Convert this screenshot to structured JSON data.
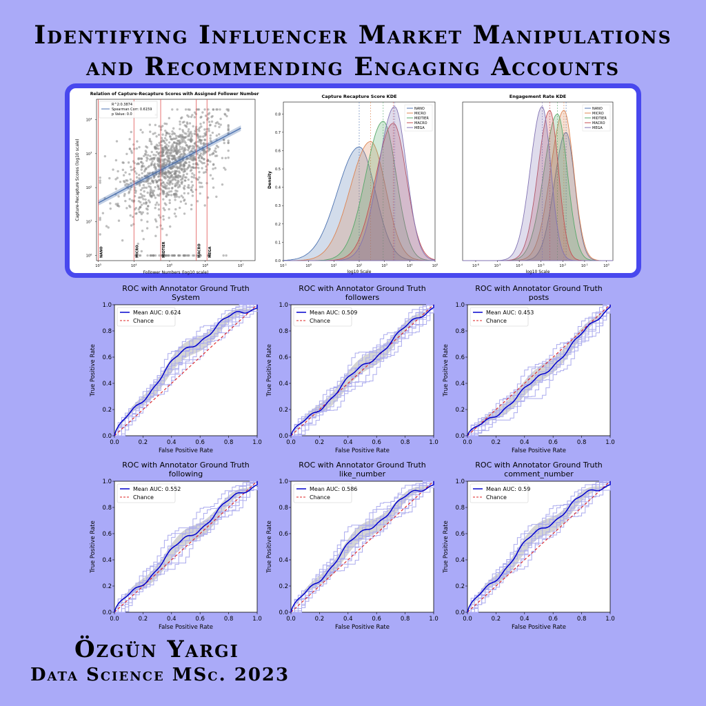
{
  "title_line1": "Identifying Influencer Market Manipulations",
  "title_line2": "and Recommending Engaging Accounts",
  "author": "Özgün Yargi",
  "degree": "Data Science MSc. 2023",
  "colors": {
    "background": "#aaaaf8",
    "frame": "#4848ee",
    "roc_mean": "#0000cc",
    "roc_fold": "#aaaaee",
    "chance": "#dd2222",
    "band": "#aaaaaa",
    "regline": "#4c72b0"
  },
  "tiers": [
    "NANO",
    "MICRO",
    "MIDTIER",
    "MACRO",
    "MEGA"
  ],
  "tier_colors": [
    "#4c72b0",
    "#dd8452",
    "#55a868",
    "#c44e52",
    "#8172b3"
  ],
  "chart_data": [
    {
      "type": "scatter",
      "title": "Relation of Capture-Recapture Scores with Assigned Follower Numbers",
      "xlabel": "Follower Numbers (log10 scale)",
      "ylabel": "Capture-Recapture Scores (log10 scale)",
      "x_ticks": [
        "10^3",
        "10^4",
        "10^5",
        "10^6",
        "10^7"
      ],
      "y_ticks": [
        "10^0",
        "10^1",
        "10^2",
        "10^3",
        "10^4"
      ],
      "xlim_log10": [
        2.95,
        7.4
      ],
      "ylim_log10": [
        -0.15,
        4.6
      ],
      "legend": [
        "R^2:0.3874",
        "Spearman Corr: 0.6159",
        "p Value: 0.0"
      ],
      "regression": {
        "x_log10": [
          3.0,
          7.0
        ],
        "y_log10": [
          1.55,
          3.75
        ]
      },
      "tier_lines_log10": [
        3.0,
        4.0,
        4.75,
        5.75,
        6.05
      ],
      "tier_line_labels": [
        "NANO",
        "MICRO",
        "MIDTIER",
        "MACRO",
        "MEGA"
      ],
      "n_points": 1200
    },
    {
      "type": "area",
      "title": "Capture Recapture Score KDE",
      "xlabel": "log10 Scale",
      "ylabel": "Density",
      "x_ticks": [
        "10^-1",
        "10^0",
        "10^1",
        "10^2",
        "10^3",
        "10^4",
        "10^5"
      ],
      "y_ticks": [
        "0.0",
        "0.1",
        "0.2",
        "0.3",
        "0.4",
        "0.5",
        "0.6",
        "0.7",
        "0.8"
      ],
      "xlim_log10": [
        -1,
        5
      ],
      "ylim": [
        0,
        0.88
      ],
      "series": [
        {
          "name": "NANO",
          "center": 2.0,
          "sigma": 0.64,
          "peak": 0.62
        },
        {
          "name": "MICRO",
          "center": 2.45,
          "sigma": 0.6,
          "peak": 0.65
        },
        {
          "name": "MIDTIER",
          "center": 2.95,
          "sigma": 0.52,
          "peak": 0.76
        },
        {
          "name": "MACRO",
          "center": 3.35,
          "sigma": 0.52,
          "peak": 0.75
        },
        {
          "name": "MEGA",
          "center": 3.4,
          "sigma": 0.47,
          "peak": 0.84
        }
      ]
    },
    {
      "type": "area",
      "title": "Engagement Rate KDE",
      "xlabel": "log10 Scale",
      "x_ticks": [
        "10^-6",
        "10^-5",
        "10^-4",
        "10^-3",
        "10^-2",
        "10^-1",
        "10^0"
      ],
      "xlim_log10": [
        -6.6,
        0.3
      ],
      "series": [
        {
          "name": "NANO",
          "center": -1.85,
          "sigma": 0.4,
          "peak": 0.7
        },
        {
          "name": "MICRO",
          "center": -1.95,
          "sigma": 0.45,
          "peak": 0.82
        },
        {
          "name": "MIDTIER",
          "center": -2.25,
          "sigma": 0.46,
          "peak": 0.8
        },
        {
          "name": "MACRO",
          "center": -2.6,
          "sigma": 0.4,
          "peak": 0.82
        },
        {
          "name": "MEGA",
          "center": -2.95,
          "sigma": 0.4,
          "peak": 0.84
        }
      ]
    },
    {
      "type": "line",
      "title": "ROC with Annotator Ground Truth",
      "subtitle": "System",
      "mean_auc": "0.624",
      "bow": 0.13,
      "wiggle": 0.03
    },
    {
      "type": "line",
      "title": "ROC with Annotator Ground Truth",
      "subtitle": "followers",
      "mean_auc": "0.509",
      "bow": 0.02,
      "wiggle": 0.025
    },
    {
      "type": "line",
      "title": "ROC with Annotator Ground Truth",
      "subtitle": "posts",
      "mean_auc": "0.453",
      "bow": -0.05,
      "wiggle": 0.02
    },
    {
      "type": "line",
      "title": "ROC with Annotator Ground Truth",
      "subtitle": "following",
      "mean_auc": "0.552",
      "bow": 0.05,
      "wiggle": 0.03
    },
    {
      "type": "line",
      "title": "ROC with Annotator Ground Truth",
      "subtitle": "like_number",
      "mean_auc": "0.586",
      "bow": 0.09,
      "wiggle": 0.03
    },
    {
      "type": "line",
      "title": "ROC with Annotator Ground Truth",
      "subtitle": "comment_number",
      "mean_auc": "0.59",
      "bow": 0.1,
      "wiggle": 0.03
    }
  ],
  "roc_common": {
    "xlabel": "False Positive Rate",
    "ylabel": "True Positive Rate",
    "ticks": [
      "0.0",
      "0.2",
      "0.4",
      "0.6",
      "0.8",
      "1.0"
    ],
    "legend_mean_prefix": "Mean AUC: ",
    "legend_chance": "Chance"
  }
}
